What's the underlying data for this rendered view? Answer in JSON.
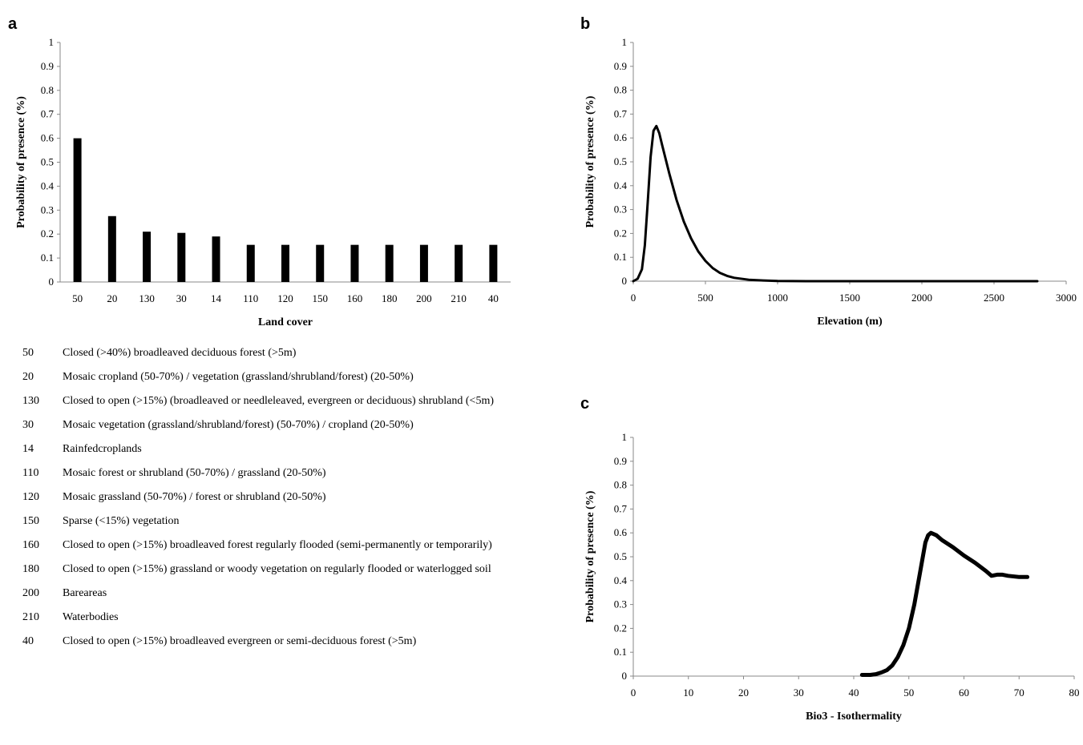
{
  "panels": {
    "a": "a",
    "b": "b",
    "c": "c"
  },
  "chart_data": [
    {
      "type": "bar",
      "panel": "a",
      "xlabel": "Land cover",
      "ylabel": "Probability of presence (%)",
      "ylim": [
        0,
        1
      ],
      "yticks": [
        "0",
        "0.1",
        "0.2",
        "0.3",
        "0.4",
        "0.5",
        "0.6",
        "0.7",
        "0.8",
        "0.9",
        "1"
      ],
      "categories": [
        "50",
        "20",
        "130",
        "30",
        "14",
        "110",
        "120",
        "150",
        "160",
        "180",
        "200",
        "210",
        "40"
      ],
      "values": [
        0.6,
        0.275,
        0.21,
        0.205,
        0.19,
        0.155,
        0.155,
        0.155,
        0.155,
        0.155,
        0.155,
        0.155,
        0.155
      ],
      "color": "#000000"
    },
    {
      "type": "line",
      "panel": "b",
      "xlabel": "Elevation (m)",
      "ylabel": "Probability of presence (%)",
      "xlim": [
        0,
        3000
      ],
      "ylim": [
        0,
        1
      ],
      "xticks": [
        "0",
        "500",
        "1000",
        "1500",
        "2000",
        "2500",
        "3000"
      ],
      "yticks": [
        "0",
        "0.1",
        "0.2",
        "0.3",
        "0.4",
        "0.5",
        "0.6",
        "0.7",
        "0.8",
        "0.9",
        "1"
      ],
      "series": [
        {
          "x": [
            0,
            30,
            60,
            80,
            100,
            120,
            140,
            160,
            180,
            200,
            250,
            300,
            350,
            400,
            450,
            500,
            550,
            600,
            650,
            700,
            800,
            900,
            1000,
            1200,
            1500,
            2000,
            2500,
            2800
          ],
          "y": [
            0.0,
            0.01,
            0.05,
            0.15,
            0.33,
            0.52,
            0.63,
            0.65,
            0.62,
            0.57,
            0.45,
            0.34,
            0.25,
            0.18,
            0.125,
            0.085,
            0.055,
            0.035,
            0.022,
            0.014,
            0.006,
            0.003,
            0.001,
            0.0,
            0.0,
            0.0,
            0.0,
            0.0
          ]
        }
      ],
      "color": "#000000"
    },
    {
      "type": "line",
      "panel": "c",
      "xlabel": "Bio3 - Isothermality",
      "ylabel": "Probability of presence (%)",
      "xlim": [
        0,
        80
      ],
      "ylim": [
        0,
        1
      ],
      "xticks": [
        "0",
        "10",
        "20",
        "30",
        "40",
        "50",
        "60",
        "70",
        "80"
      ],
      "yticks": [
        "0",
        "0.1",
        "0.2",
        "0.3",
        "0.4",
        "0.5",
        "0.6",
        "0.7",
        "0.8",
        "0.9",
        "1"
      ],
      "series": [
        {
          "x": [
            41.5,
            43,
            44,
            45,
            46,
            47,
            48,
            49,
            50,
            51,
            52,
            53,
            53.5,
            54,
            55,
            56,
            58,
            60,
            62,
            64,
            65,
            66,
            67,
            68,
            70,
            71.5
          ],
          "y": [
            0.005,
            0.005,
            0.008,
            0.015,
            0.025,
            0.045,
            0.08,
            0.13,
            0.2,
            0.3,
            0.43,
            0.56,
            0.59,
            0.6,
            0.59,
            0.57,
            0.54,
            0.505,
            0.475,
            0.44,
            0.42,
            0.425,
            0.425,
            0.42,
            0.415,
            0.415
          ]
        }
      ],
      "color": "#000000"
    }
  ],
  "legend": [
    {
      "code": "50",
      "desc": "Closed (>40%) broadleaved deciduous forest (>5m)"
    },
    {
      "code": "20",
      "desc": "Mosaic cropland (50-70%) / vegetation (grassland/shrubland/forest) (20-50%)"
    },
    {
      "code": "130",
      "desc": "Closed to open (>15%) (broadleaved or needleleaved, evergreen or deciduous) shrubland (<5m)"
    },
    {
      "code": "30",
      "desc": "Mosaic vegetation (grassland/shrubland/forest) (50-70%) / cropland (20-50%)"
    },
    {
      "code": "14",
      "desc": "Rainfedcroplands"
    },
    {
      "code": "110",
      "desc": "Mosaic forest or shrubland (50-70%) / grassland (20-50%)"
    },
    {
      "code": "120",
      "desc": "Mosaic grassland (50-70%) / forest or shrubland (20-50%)"
    },
    {
      "code": "150",
      "desc": "Sparse (<15%) vegetation"
    },
    {
      "code": "160",
      "desc": "Closed to open (>15%) broadleaved forest regularly flooded (semi-permanently or temporarily)"
    },
    {
      "code": "180",
      "desc": "Closed to open (>15%) grassland or woody vegetation on regularly flooded or waterlogged soil"
    },
    {
      "code": "200",
      "desc": "Bareareas"
    },
    {
      "code": "210",
      "desc": "Waterbodies"
    },
    {
      "code": "40",
      "desc": "Closed to open (>15%) broadleaved evergreen or semi-deciduous forest (>5m)"
    }
  ]
}
